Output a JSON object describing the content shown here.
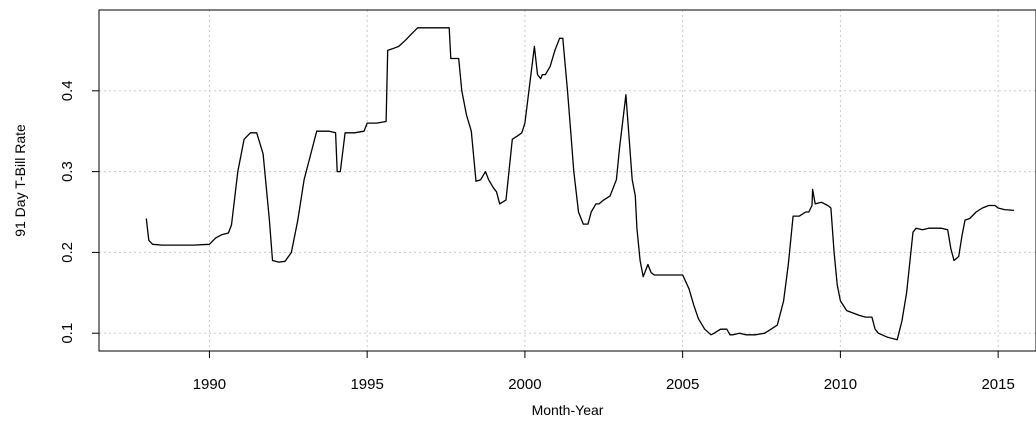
{
  "chart_data": {
    "type": "line",
    "xlabel": "Month-Year",
    "ylabel": "91 Day T-Bill Rate",
    "xlim": [
      1986.5,
      2016.2
    ],
    "ylim": [
      0.078,
      0.5
    ],
    "grid": true,
    "x_ticks": [
      1990,
      1995,
      2000,
      2005,
      2010,
      2015
    ],
    "x_tick_labels": [
      "1990",
      "1995",
      "2000",
      "2005",
      "2010",
      "2015"
    ],
    "y_ticks": [
      0.1,
      0.2,
      0.3,
      0.4
    ],
    "y_tick_labels": [
      "0.1",
      "0.2",
      "0.3",
      "0.4"
    ],
    "line_color": "#000000",
    "grid_color": "#c8c8c8",
    "series": [
      {
        "x": [
          1988.0,
          1988.08,
          1988.2,
          1988.5,
          1989.0,
          1989.5,
          1990.0,
          1990.2,
          1990.4,
          1990.6,
          1990.7,
          1990.9,
          1991.1,
          1991.3,
          1991.5,
          1991.7,
          1991.9,
          1992.0,
          1992.2,
          1992.4,
          1992.6,
          1992.8,
          1993.0,
          1993.2,
          1993.4,
          1993.6,
          1993.8,
          1994.0,
          1994.05,
          1994.15,
          1994.3,
          1994.6,
          1994.9,
          1995.0,
          1995.3,
          1995.6,
          1995.65,
          1995.8,
          1996.0,
          1996.2,
          1996.4,
          1996.6,
          1996.8,
          1997.0,
          1997.3,
          1997.6,
          1997.65,
          1997.9,
          1998.0,
          1998.15,
          1998.3,
          1998.45,
          1998.6,
          1998.75,
          1998.85,
          1999.0,
          1999.1,
          1999.2,
          1999.4,
          1999.6,
          1999.8,
          1999.9,
          2000.0,
          2000.3,
          2000.4,
          2000.5,
          2000.55,
          2000.65,
          2000.8,
          2000.95,
          2001.1,
          2001.2,
          2001.35,
          2001.45,
          2001.55,
          2001.7,
          2001.85,
          2002.0,
          2002.1,
          2002.25,
          2002.35,
          2002.5,
          2002.7,
          2002.9,
          2003.0,
          2003.2,
          2003.4,
          2003.5,
          2003.55,
          2003.65,
          2003.75,
          2003.9,
          2004.0,
          2004.1,
          2004.3,
          2004.35,
          2004.5,
          2004.8,
          2005.0,
          2005.2,
          2005.35,
          2005.5,
          2005.7,
          2005.9,
          2006.0,
          2006.2,
          2006.4,
          2006.5,
          2006.6,
          2006.8,
          2007.0,
          2007.1,
          2007.3,
          2007.6,
          2007.8,
          2008.0,
          2008.2,
          2008.35,
          2008.5,
          2008.7,
          2008.9,
          2009.0,
          2009.1,
          2009.12,
          2009.2,
          2009.4,
          2009.6,
          2009.7,
          2009.8,
          2009.9,
          2010.0,
          2010.2,
          2010.4,
          2010.6,
          2010.8,
          2011.0,
          2011.1,
          2011.2,
          2011.5,
          2011.8,
          2011.95,
          2012.1,
          2012.3,
          2012.4,
          2012.6,
          2012.8,
          2013.0,
          2013.2,
          2013.4,
          2013.5,
          2013.6,
          2013.75,
          2013.85,
          2013.95,
          2014.1,
          2014.3,
          2014.5,
          2014.7,
          2014.9,
          2015.0,
          2015.2,
          2015.5
        ],
        "values": [
          0.242,
          0.215,
          0.21,
          0.209,
          0.209,
          0.209,
          0.21,
          0.218,
          0.222,
          0.224,
          0.234,
          0.3,
          0.34,
          0.348,
          0.348,
          0.322,
          0.24,
          0.19,
          0.188,
          0.189,
          0.2,
          0.24,
          0.29,
          0.32,
          0.35,
          0.35,
          0.35,
          0.348,
          0.3,
          0.3,
          0.348,
          0.348,
          0.35,
          0.36,
          0.36,
          0.362,
          0.45,
          0.452,
          0.455,
          0.462,
          0.47,
          0.478,
          0.478,
          0.478,
          0.478,
          0.478,
          0.44,
          0.44,
          0.4,
          0.37,
          0.35,
          0.288,
          0.29,
          0.3,
          0.29,
          0.28,
          0.275,
          0.26,
          0.265,
          0.34,
          0.345,
          0.348,
          0.36,
          0.455,
          0.42,
          0.415,
          0.42,
          0.42,
          0.43,
          0.45,
          0.465,
          0.465,
          0.4,
          0.35,
          0.3,
          0.25,
          0.235,
          0.235,
          0.25,
          0.26,
          0.26,
          0.265,
          0.27,
          0.29,
          0.33,
          0.395,
          0.29,
          0.27,
          0.23,
          0.19,
          0.17,
          0.185,
          0.175,
          0.172,
          0.172,
          0.172,
          0.172,
          0.172,
          0.172,
          0.155,
          0.135,
          0.118,
          0.105,
          0.098,
          0.1,
          0.105,
          0.105,
          0.098,
          0.098,
          0.1,
          0.098,
          0.098,
          0.098,
          0.1,
          0.105,
          0.11,
          0.14,
          0.185,
          0.245,
          0.245,
          0.25,
          0.25,
          0.258,
          0.278,
          0.26,
          0.262,
          0.258,
          0.255,
          0.2,
          0.16,
          0.14,
          0.128,
          0.125,
          0.122,
          0.12,
          0.12,
          0.105,
          0.1,
          0.095,
          0.092,
          0.115,
          0.15,
          0.225,
          0.23,
          0.228,
          0.23,
          0.23,
          0.23,
          0.228,
          0.205,
          0.19,
          0.195,
          0.22,
          0.24,
          0.242,
          0.25,
          0.255,
          0.258,
          0.258,
          0.255,
          0.253,
          0.252
        ]
      }
    ]
  }
}
